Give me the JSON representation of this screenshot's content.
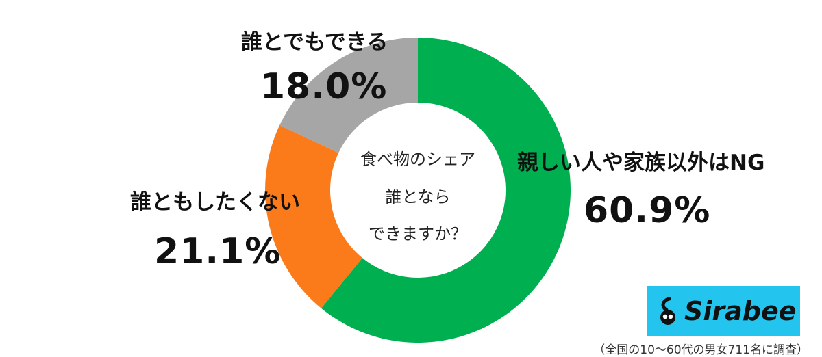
{
  "chart_data": {
    "type": "pie",
    "donut": true,
    "title_lines": [
      "食べ物のシェア",
      "誰とならできますか？"
    ],
    "center_lines": [
      "食べ物のシェア",
      "誰となら",
      "できますか？"
    ],
    "slices": [
      {
        "label": "親しい人や家族以外はNG",
        "value": 60.9,
        "display": "60.9%",
        "color": "#00b050"
      },
      {
        "label": "誰ともしたくない",
        "value": 21.1,
        "display": "21.1%",
        "color": "#fb7b1b"
      },
      {
        "label": "誰とでもできる",
        "value": 18.0,
        "display": "18.0%",
        "color": "#a6a6a6"
      }
    ]
  },
  "brand": {
    "logo_text": "Sirabee",
    "logo_bg": "#23c4ee"
  },
  "source_note": "（全国の10〜60代の男女711名に調査）"
}
